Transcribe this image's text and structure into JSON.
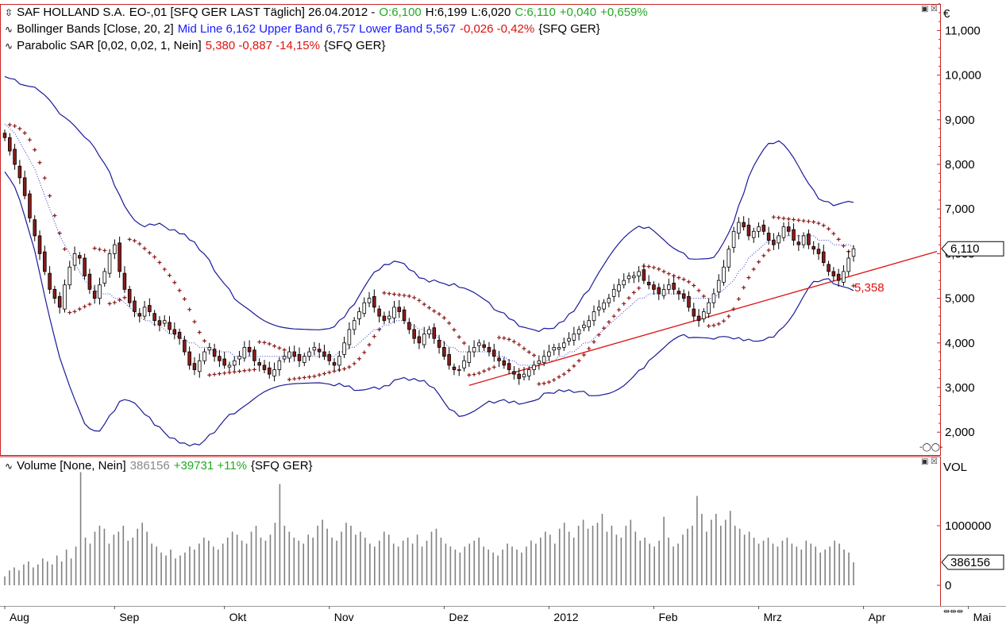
{
  "header": {
    "instrument": "SAF HOLLAND S.A.",
    "code": "EO-,01 [SFQ GER LAST Täglich] 26.04.2012 -",
    "open": "O:6,100",
    "high": "H:6,199",
    "low": "L:6,020",
    "close": "C:6,110",
    "change": "+0,040",
    "change_pct": "+0,659%"
  },
  "indicators": {
    "bollinger": {
      "label": "Bollinger Bands [Close, 20, 2]",
      "values": "Mid Line 6,162 Upper Band 6,757 Lower Band 5,567",
      "change": "-0,026 -0,42%",
      "exchange": "{SFQ GER}"
    },
    "sar": {
      "label": "Parabolic SAR [0,02, 0,02, 1, Nein]",
      "values": "5,380 -0,887 -14,15%",
      "exchange": "{SFQ GER}"
    },
    "volume": {
      "label": "Volume [None, Nein]",
      "value": "386156",
      "change": "+39731 +11%",
      "exchange": "{SFQ GER}"
    }
  },
  "axis": {
    "currency": "€",
    "price_ticks": [
      "11,000",
      "10,000",
      "9,000",
      "8,000",
      "7,000",
      "6,000",
      "5,000",
      "4,000",
      "3,000",
      "2,000"
    ],
    "last_price": "6,110",
    "trendline_label": "5,358",
    "volume_label": "VOL",
    "volume_ticks": [
      "1000000",
      "0"
    ],
    "last_volume": "386156"
  },
  "colors": {
    "up_candle": "#ffffff",
    "down_candle": "#8b1a1a",
    "bollinger": "#1a1a99",
    "sar": "#8b1a1a",
    "trendline": "#dd1111",
    "volume_bar": "#808080",
    "panel_border": "#cc2222"
  },
  "icons": [
    "panel-minimize-icon",
    "panel-close-icon",
    "indicator-wave-icon",
    "scroll-arrows-icon"
  ],
  "chart_data": [
    {
      "type": "candlestick",
      "title": "SAF HOLLAND S.A.",
      "x_labels": [
        "Aug",
        "Sep",
        "Okt",
        "Nov",
        "Dez",
        "2012",
        "Feb",
        "Mrz",
        "Apr",
        "Mai"
      ],
      "ylim": [
        1.5,
        11.5
      ],
      "close": [
        8.6,
        8.3,
        8.0,
        7.7,
        7.3,
        6.8,
        6.4,
        6.0,
        5.6,
        5.2,
        5.0,
        4.8,
        5.3,
        5.7,
        6.0,
        5.9,
        5.5,
        5.2,
        5.0,
        5.3,
        5.6,
        6.0,
        6.2,
        5.6,
        5.2,
        4.9,
        4.7,
        4.6,
        4.8,
        4.7,
        4.5,
        4.4,
        4.5,
        4.3,
        4.2,
        4.1,
        3.8,
        3.5,
        3.4,
        3.6,
        3.8,
        3.9,
        3.7,
        3.6,
        3.5,
        3.5,
        3.6,
        3.7,
        3.9,
        3.8,
        3.6,
        3.5,
        3.4,
        3.3,
        3.4,
        3.6,
        3.7,
        3.8,
        3.7,
        3.6,
        3.7,
        3.8,
        3.9,
        3.8,
        3.7,
        3.6,
        3.5,
        3.7,
        4.0,
        4.3,
        4.5,
        4.7,
        4.9,
        5.0,
        4.8,
        4.6,
        4.5,
        4.6,
        4.8,
        4.7,
        4.5,
        4.3,
        4.1,
        4.0,
        4.2,
        4.3,
        4.1,
        3.9,
        3.7,
        3.5,
        3.4,
        3.4,
        3.6,
        3.8,
        3.9,
        4.0,
        3.9,
        3.8,
        3.7,
        3.6,
        3.5,
        3.4,
        3.3,
        3.2,
        3.3,
        3.4,
        3.5,
        3.6,
        3.7,
        3.8,
        3.9,
        3.9,
        4.0,
        4.1,
        4.2,
        4.3,
        4.4,
        4.5,
        4.7,
        4.8,
        4.9,
        5.0,
        5.2,
        5.3,
        5.4,
        5.5,
        5.5,
        5.6,
        5.4,
        5.3,
        5.2,
        5.1,
        5.2,
        5.3,
        5.2,
        5.1,
        5.0,
        4.8,
        4.6,
        4.5,
        4.7,
        4.9,
        5.1,
        5.4,
        5.7,
        6.1,
        6.5,
        6.7,
        6.6,
        6.4,
        6.5,
        6.6,
        6.5,
        6.3,
        6.2,
        6.4,
        6.6,
        6.5,
        6.3,
        6.2,
        6.4,
        6.2,
        6.1,
        6.0,
        5.8,
        5.6,
        5.5,
        5.4,
        5.6,
        5.9,
        6.11
      ],
      "series": [
        {
          "name": "Mid Line",
          "values": [
            8.9,
            8.8,
            8.7,
            8.5,
            8.3,
            8.1,
            7.9,
            7.6,
            7.3,
            7.0,
            6.7,
            6.4,
            6.2,
            6.0,
            5.8,
            5.6,
            5.4,
            5.3,
            5.2,
            5.1,
            5.1,
            5.1,
            5.0,
            5.0,
            4.9,
            4.8,
            4.7,
            4.6,
            4.5,
            4.5,
            4.4,
            4.4,
            4.3,
            4.2,
            4.2,
            4.1,
            4.1,
            4.0,
            4.0,
            3.9,
            3.9,
            3.9,
            3.8,
            3.8,
            3.8,
            3.8,
            3.7,
            3.7,
            3.7,
            3.7,
            3.7,
            3.7,
            3.7,
            3.7,
            3.7,
            3.7,
            3.7,
            3.7,
            3.7,
            3.7,
            3.7,
            3.7,
            3.7,
            3.7,
            3.7,
            3.7,
            3.7,
            3.8,
            3.8,
            3.9,
            3.9,
            4.0,
            4.1,
            4.2,
            4.3,
            4.3,
            4.4,
            4.4,
            4.5,
            4.5,
            4.5,
            4.4,
            4.4,
            4.3,
            4.3,
            4.2,
            4.2,
            4.1,
            4.0,
            3.9,
            3.9,
            3.8,
            3.8,
            3.8,
            3.8,
            3.8,
            3.8,
            3.8,
            3.7,
            3.7,
            3.7,
            3.6,
            3.6,
            3.5,
            3.5,
            3.5,
            3.5,
            3.5,
            3.6,
            3.6,
            3.6,
            3.7,
            3.7,
            3.8,
            3.8,
            3.9,
            4.0,
            4.0,
            4.1,
            4.2,
            4.3,
            4.4,
            4.5,
            4.6,
            4.7,
            4.8,
            4.9,
            5.0,
            5.0,
            5.1,
            5.1,
            5.1,
            5.1,
            5.1,
            5.1,
            5.1,
            5.1,
            5.0,
            5.0,
            5.0,
            5.0,
            5.0,
            5.0,
            5.1,
            5.2,
            5.3,
            5.4,
            5.6,
            5.7,
            5.9,
            6.0,
            6.1,
            6.2,
            6.3,
            6.3,
            6.4,
            6.4,
            6.4,
            6.4,
            6.4,
            6.4,
            6.4,
            6.4,
            6.3,
            6.3,
            6.3,
            6.2,
            6.2,
            6.2,
            6.2,
            6.16
          ]
        }
      ]
    },
    {
      "type": "bar",
      "title": "Volume",
      "y_ticks": [
        "1000000",
        "0"
      ],
      "values": [
        150000,
        250000,
        300000,
        250000,
        350000,
        400000,
        300000,
        350000,
        450000,
        400000,
        350000,
        500000,
        400000,
        600000,
        450000,
        650000,
        1900000,
        800000,
        700000,
        900000,
        1000000,
        950000,
        700000,
        850000,
        900000,
        1000000,
        750000,
        800000,
        950000,
        1050000,
        900000,
        700000,
        650000,
        550000,
        500000,
        600000,
        450000,
        500000,
        550000,
        650000,
        600000,
        700000,
        800000,
        750000,
        650000,
        600000,
        700000,
        800000,
        900000,
        850000,
        750000,
        700000,
        900000,
        1000000,
        800000,
        750000,
        850000,
        1050000,
        1700000,
        1000000,
        900000,
        800000,
        750000,
        700000,
        850000,
        800000,
        1000000,
        1100000,
        950000,
        800000,
        750000,
        900000,
        1050000,
        1000000,
        850000,
        900000,
        800000,
        700000,
        650000,
        750000,
        900000,
        850000,
        700000,
        650000,
        750000,
        800000,
        700000,
        850000,
        650000,
        750000,
        900000,
        950000,
        800000,
        700000,
        650000,
        600000,
        550000,
        650000,
        700000,
        750000,
        800000,
        650000,
        600000,
        550000,
        500000,
        600000,
        700000,
        650000,
        600000,
        550000,
        650000,
        750000,
        700000,
        800000,
        900000,
        850000,
        700000,
        950000,
        1050000,
        900000,
        800000,
        1000000,
        1100000,
        950000,
        1000000,
        1050000,
        1200000,
        900000,
        1000000,
        850000,
        800000,
        1000000,
        1100000,
        900000,
        750000,
        800000,
        700000,
        650000,
        750000,
        1150000,
        800000,
        650000,
        700000,
        850000,
        950000,
        1000000,
        1500000,
        1200000,
        900000,
        1100000,
        1200000,
        1000000,
        1100000,
        1250000,
        1000000,
        950000,
        850000,
        900000,
        800000,
        700000,
        750000,
        800000,
        700000,
        650000,
        750000,
        800000,
        700000,
        650000,
        600000,
        750000,
        700000,
        650000,
        550000,
        600000,
        650000,
        750000,
        700000,
        600000,
        550000,
        386156
      ]
    }
  ]
}
